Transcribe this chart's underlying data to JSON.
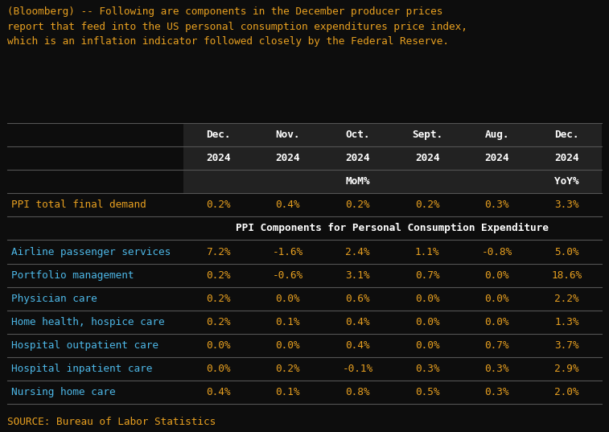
{
  "background_color": "#0d0d0d",
  "title_text": "(Bloomberg) -- Following are components in the December producer prices\nreport that feed into the US personal consumption expenditures price index,\nwhich is an inflation indicator followed closely by the Federal Reserve.",
  "title_color": "#e8a020",
  "source_text": "SOURCE: Bureau of Labor Statistics",
  "source_color": "#e8a020",
  "col_headers_line1": [
    "Dec.",
    "Nov.",
    "Oct.",
    "Sept.",
    "Aug.",
    "Dec."
  ],
  "col_headers_line2": [
    "2024",
    "2024",
    "2024",
    "2024",
    "2024",
    "2024"
  ],
  "col_headers_line3": [
    "",
    "",
    "MoM%",
    "",
    "",
    "YoY%"
  ],
  "header_color": "#ffffff",
  "header_bg": "#222222",
  "ppi_row_label": "PPI total final demand",
  "ppi_row_values": [
    "0.2%",
    "0.4%",
    "0.2%",
    "0.2%",
    "0.3%",
    "3.3%"
  ],
  "ppi_label_color": "#e8a020",
  "ppi_value_color": "#e8a020",
  "section_header": "PPI Components for Personal Consumption Expenditure",
  "section_header_color": "#ffffff",
  "row_labels": [
    "Airline passenger services",
    "Portfolio management",
    "Physician care",
    "Home health, hospice care",
    "Hospital outpatient care",
    "Hospital inpatient care",
    "Nursing home care"
  ],
  "row_label_color": "#4db8e8",
  "row_values": [
    [
      "7.2%",
      "-1.6%",
      "2.4%",
      "1.1%",
      "-0.8%",
      "5.0%"
    ],
    [
      "0.2%",
      "-0.6%",
      "3.1%",
      "0.7%",
      "0.0%",
      "18.6%"
    ],
    [
      "0.2%",
      "0.0%",
      "0.6%",
      "0.0%",
      "0.0%",
      "2.2%"
    ],
    [
      "0.2%",
      "0.1%",
      "0.4%",
      "0.0%",
      "0.0%",
      "1.3%"
    ],
    [
      "0.0%",
      "0.0%",
      "0.4%",
      "0.0%",
      "0.7%",
      "3.7%"
    ],
    [
      "0.0%",
      "0.2%",
      "-0.1%",
      "0.3%",
      "0.3%",
      "2.9%"
    ],
    [
      "0.4%",
      "0.1%",
      "0.8%",
      "0.5%",
      "0.3%",
      "2.0%"
    ]
  ],
  "row_value_color": "#e8a020",
  "table_line_color": "#555555",
  "figsize": [
    7.57,
    5.37
  ],
  "dpi": 100,
  "title_fontsize": 9.2,
  "table_fontsize": 9.2
}
